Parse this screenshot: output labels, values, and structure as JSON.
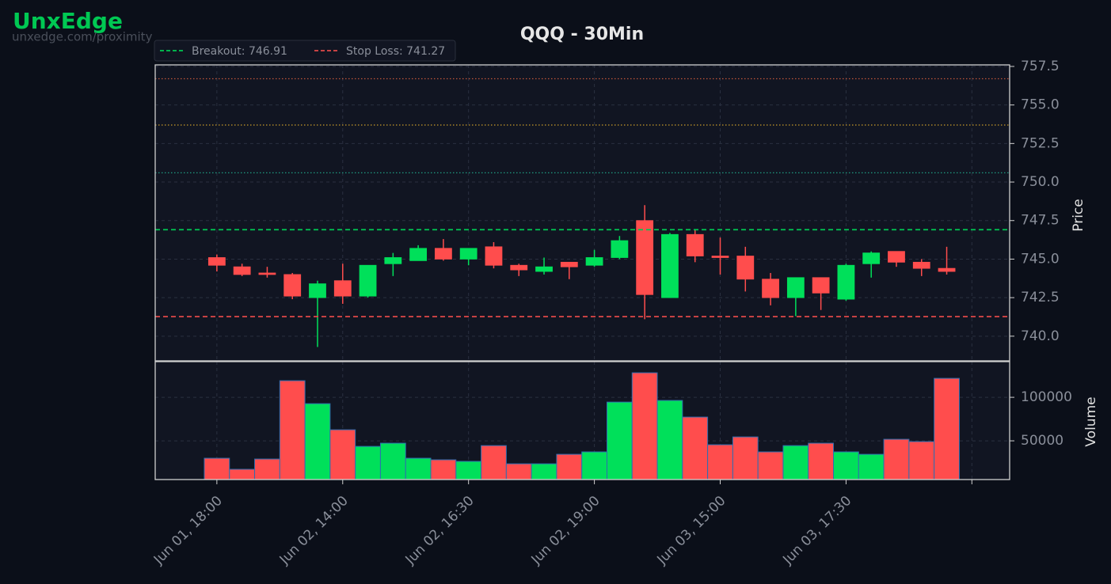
{
  "watermark": {
    "brand": "UnxEdge",
    "url": "unxedge.com/proximity"
  },
  "chart_data": {
    "type": "candlestick",
    "title": "QQQ - 30Min",
    "y_label": "Price",
    "volume_label": "Volume",
    "up_color": "#00e05a",
    "down_color": "#ff4d4d",
    "open": [
      745.1,
      744.5,
      744.1,
      744.0,
      742.5,
      743.6,
      742.6,
      744.7,
      744.9,
      745.7,
      745.0,
      745.8,
      744.6,
      744.2,
      744.8,
      744.6,
      745.1,
      747.5,
      742.5,
      746.6,
      745.2,
      745.2,
      743.7,
      742.5,
      743.8,
      742.4,
      744.7,
      745.5,
      744.8,
      744.4
    ],
    "high": [
      745.3,
      744.7,
      744.5,
      744.1,
      743.6,
      744.7,
      744.6,
      745.4,
      745.9,
      746.3,
      745.7,
      746.1,
      744.7,
      745.1,
      744.8,
      745.6,
      746.5,
      748.5,
      746.7,
      746.9,
      746.4,
      745.8,
      744.1,
      743.8,
      743.8,
      744.7,
      745.5,
      745.5,
      745.0,
      745.8
    ],
    "low": [
      744.2,
      743.9,
      743.8,
      742.4,
      739.3,
      742.1,
      742.5,
      743.9,
      744.9,
      744.9,
      744.6,
      744.4,
      743.9,
      744.0,
      743.7,
      744.5,
      745.0,
      741.1,
      742.5,
      744.8,
      744.0,
      742.9,
      742.0,
      741.3,
      741.7,
      742.3,
      743.8,
      744.5,
      743.9,
      744.0
    ],
    "close": [
      744.6,
      744.0,
      744.0,
      742.6,
      743.4,
      742.6,
      744.6,
      745.1,
      745.7,
      745.0,
      745.7,
      744.6,
      744.3,
      744.5,
      744.5,
      745.1,
      746.2,
      742.7,
      746.6,
      745.2,
      745.1,
      743.7,
      742.5,
      743.8,
      742.8,
      744.6,
      745.4,
      744.8,
      744.4,
      744.2
    ],
    "volume": [
      30000,
      17300,
      29100,
      119100,
      92700,
      62700,
      43600,
      47300,
      30000,
      28200,
      26400,
      44500,
      23600,
      23600,
      34500,
      37300,
      94500,
      128200,
      96400,
      77300,
      45500,
      54500,
      37300,
      44500,
      47300,
      37300,
      34500,
      51800,
      49100,
      121800
    ],
    "xlim": [
      -2.45,
      31.5
    ],
    "xticks": [
      {
        "value": 0,
        "label": "Jun 01, 18:00"
      },
      {
        "value": 5,
        "label": "Jun 02, 14:00"
      },
      {
        "value": 10,
        "label": "Jun 02, 16:30"
      },
      {
        "value": 15,
        "label": "Jun 02, 19:00"
      },
      {
        "value": 20,
        "label": "Jun 03, 15:00"
      },
      {
        "value": 25,
        "label": "Jun 03, 17:30"
      },
      {
        "value": 30,
        "label": null
      }
    ],
    "ylim": [
      738.4,
      757.6
    ],
    "yticks": [
      {
        "value": 740,
        "label": "740.0"
      },
      742.5,
      {
        "value": 745,
        "label": "745.0"
      },
      747.5,
      {
        "value": 750,
        "label": "750.0"
      },
      752.5,
      {
        "value": 755,
        "label": "755.0"
      },
      757.5
    ],
    "volume_ylim": [
      5500,
      141000
    ],
    "volume_yticks": [
      50000,
      100000
    ],
    "grid": true,
    "lines": [
      {
        "label": "Breakout: 746.91",
        "value": 746.91,
        "color": "#00c853"
      },
      {
        "label": "Stop Loss: 741.27",
        "value": 741.27,
        "color": "#e04848"
      }
    ],
    "levels": [
      {
        "value": 756.7,
        "color": "#c0553a"
      },
      {
        "value": 753.7,
        "color": "#c89a2a"
      },
      {
        "value": 750.6,
        "color": "#1f9a80"
      }
    ]
  }
}
